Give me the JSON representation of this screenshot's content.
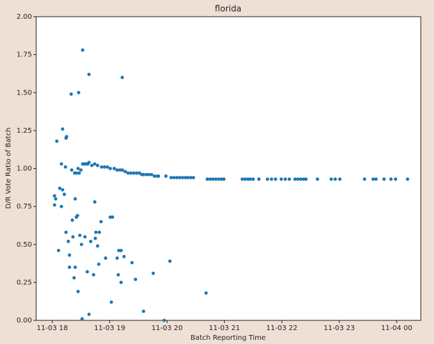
{
  "chart_data": {
    "type": "scatter",
    "title": "florida",
    "x_label": "Batch Reporting Time",
    "y_label": "D/R Vote Ratio of Batch",
    "xlim": [
      17.72,
      24.42
    ],
    "ylim": [
      0,
      2
    ],
    "xticks": [
      {
        "value": 18,
        "label": "11-03 18"
      },
      {
        "value": 19,
        "label": "11-03 19"
      },
      {
        "value": 20,
        "label": "11-03 20"
      },
      {
        "value": 21,
        "label": "11-03 21"
      },
      {
        "value": 22,
        "label": "11-03 22"
      },
      {
        "value": 23,
        "label": "11-03 23"
      },
      {
        "value": 24,
        "label": "11-04 00"
      }
    ],
    "yticks": [
      {
        "value": 0,
        "label": "0.00"
      },
      {
        "value": 0.25,
        "label": "0.25"
      },
      {
        "value": 0.5,
        "label": "0.50"
      },
      {
        "value": 0.75,
        "label": "0.75"
      },
      {
        "value": 1,
        "label": "1.00"
      },
      {
        "value": 1.25,
        "label": "1.25"
      },
      {
        "value": 1.5,
        "label": "1.50"
      },
      {
        "value": 1.75,
        "label": "1.75"
      },
      {
        "value": 2,
        "label": "2.00"
      }
    ],
    "color": "#1f77b4",
    "x": [
      18.04,
      18.04,
      18.06,
      18.08,
      18.11,
      18.13,
      18.16,
      18.16,
      18.18,
      18.18,
      18.21,
      18.23,
      18.24,
      18.25,
      18.24,
      18.28,
      18.3,
      18.3,
      18.33,
      18.34,
      18.35,
      18.36,
      18.38,
      18.39,
      18.4,
      18.4,
      18.42,
      18.42,
      18.44,
      18.45,
      18.45,
      18.46,
      18.47,
      18.48,
      18.5,
      18.51,
      18.52,
      18.53,
      18.53,
      18.56,
      18.57,
      18.59,
      18.61,
      18.62,
      18.64,
      18.64,
      18.64,
      18.67,
      18.69,
      18.72,
      18.74,
      18.74,
      18.75,
      18.76,
      18.79,
      18.79,
      18.81,
      18.82,
      18.85,
      18.86,
      18.91,
      18.93,
      18.96,
      19.01,
      19.03,
      19.05,
      19.01,
      19.08,
      19.13,
      19.13,
      19.15,
      19.16,
      19.18,
      19.2,
      19.2,
      19.22,
      19.22,
      19.25,
      19.27,
      19.32,
      19.37,
      19.39,
      19.42,
      19.45,
      19.47,
      19.52,
      19.56,
      19.59,
      19.59,
      19.64,
      19.68,
      19.73,
      19.76,
      19.78,
      19.83,
      19.85,
      19.95,
      19.98,
      20.05,
      20.07,
      20.12,
      20.17,
      20.22,
      20.27,
      20.32,
      20.36,
      20.41,
      20.46,
      20.68,
      20.7,
      20.75,
      20.8,
      20.85,
      20.9,
      20.95,
      20.99,
      21.31,
      21.36,
      21.41,
      21.45,
      21.5,
      21.6,
      21.75,
      21.82,
      21.89,
      21.99,
      22.06,
      22.13,
      22.23,
      22.28,
      22.33,
      22.38,
      22.42,
      22.62,
      22.86,
      22.93,
      23.01,
      23.44,
      23.59,
      23.64,
      23.78,
      23.9,
      23.98,
      24.19
    ],
    "values": [
      0.76,
      0.82,
      0.8,
      1.18,
      0.46,
      0.87,
      1.03,
      0.75,
      0.86,
      1.26,
      0.83,
      1.01,
      1.2,
      1.21,
      0.58,
      0.52,
      0.43,
      0.35,
      1.49,
      0.99,
      0.66,
      0.55,
      0.28,
      0.97,
      0.35,
      0.8,
      0.97,
      0.68,
      0.69,
      1.0,
      0.19,
      1.5,
      0.97,
      0.56,
      0.99,
      0.5,
      0.01,
      1.03,
      1.78,
      1.03,
      0.55,
      1.03,
      0.32,
      1.03,
      1.62,
      0.04,
      1.04,
      0.52,
      1.02,
      0.3,
      0.78,
      1.03,
      0.54,
      0.58,
      1.02,
      0.49,
      0.37,
      0.58,
      0.65,
      1.01,
      1.01,
      0.41,
      1.01,
      0.68,
      0.12,
      0.68,
      1.0,
      1.0,
      0.99,
      0.41,
      0.3,
      0.46,
      0.99,
      0.46,
      0.25,
      1.6,
      0.99,
      0.42,
      0.98,
      0.97,
      0.97,
      0.38,
      0.97,
      0.27,
      0.97,
      0.97,
      0.96,
      0.06,
      0.96,
      0.96,
      0.96,
      0.96,
      0.31,
      0.95,
      0.95,
      0.95,
      0.0,
      0.95,
      0.39,
      0.94,
      0.94,
      0.94,
      0.94,
      0.94,
      0.94,
      0.94,
      0.94,
      0.94,
      0.18,
      0.93,
      0.93,
      0.93,
      0.93,
      0.93,
      0.93,
      0.93,
      0.93,
      0.93,
      0.93,
      0.93,
      0.93,
      0.93,
      0.93,
      0.93,
      0.93,
      0.93,
      0.93,
      0.93,
      0.93,
      0.93,
      0.93,
      0.93,
      0.93,
      0.93,
      0.93,
      0.93,
      0.93,
      0.93,
      0.93,
      0.93,
      0.93,
      0.93,
      0.93,
      0.93
    ]
  }
}
